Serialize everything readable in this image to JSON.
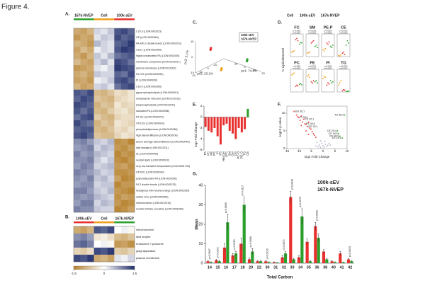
{
  "figure_title": "Figure 4.",
  "color_scale": {
    "colors": [
      "#b5802a",
      "#ffffff",
      "#1f2d6b"
    ],
    "lim": [
      -1.5,
      1.5
    ],
    "ticks": [
      -1.5,
      0,
      1.5
    ]
  },
  "panel_a": {
    "label": "A.",
    "groups": [
      {
        "name": "167k-NVEP",
        "color": "#2ca02c"
      },
      {
        "name": "Cell",
        "color": "#f0a020"
      },
      {
        "name": "100k-sEV",
        "color": "#e8312f"
      }
    ],
    "rows": [
      "C20:3 (LION:0002025)",
      "GP (LION:0000064)",
      "FA with 2 double bonds (LION:0002023)",
      "C18:1 (LION:0002050)",
      "highly unsaturated FA (LION:0002035)",
      "membrane component (LION:0012017)",
      "plasma membrane (LION:0012002)",
      "FA C20 (LION:0002059)",
      "PI (LION:0000030)",
      "C16:0 (LION:0002060)",
      "glycerophospholipids (LION:0000001)",
      "endoplasmic reticulum (LION:0012016)",
      "lysophospholipids (LION:0012041)",
      "saturated FA (LION:0002966)",
      "FA 18:1 (LION:0002070)",
      "STO102 (LION:0000003)",
      "phosphatidylserines (LION:0012086)",
      "high lateral diffusion (LION:0002000)",
      "above average lateral diffusion (LION:0000046)",
      "lipid storage (LION:0012011)",
      "SL (LION:0000008)",
      "neutral lipids (LION:0000012)",
      "very low transition temperature (LION:0001735)",
      "GP1101 (LION:0000030)",
      "polyunsaturated FA (LION:0002006)",
      "FA 2 double bonds (LION:0002075)",
      "headgroup with neutral charge (LION:0002959)",
      "zwitter ionic (LION:0000050)",
      "mitochondrion (LION:0012010)",
      "neutral intrinsic curvature (LION:0001660)"
    ],
    "values": [
      [
        -1.0,
        -1.1,
        -0.9,
        0.3,
        0.2,
        0.4,
        1.2,
        1.3,
        1.1
      ],
      [
        -1.2,
        -1.0,
        -1.1,
        0.2,
        0.4,
        0.3,
        1.3,
        1.1,
        1.2
      ],
      [
        -0.9,
        -1.0,
        -1.2,
        0.5,
        0.3,
        0.2,
        1.1,
        1.2,
        1.4
      ],
      [
        -1.1,
        -0.8,
        -1.0,
        0.1,
        0.3,
        0.2,
        1.2,
        1.4,
        1.3
      ],
      [
        -1.0,
        -1.2,
        -0.9,
        0.4,
        0.2,
        0.5,
        1.0,
        1.1,
        1.2
      ],
      [
        -0.8,
        -1.0,
        -1.1,
        0.3,
        0.5,
        0.2,
        1.3,
        1.2,
        1.0
      ],
      [
        -1.2,
        -1.1,
        -1.0,
        0.2,
        0.1,
        0.3,
        1.4,
        1.3,
        1.2
      ],
      [
        -1.0,
        -0.9,
        -1.1,
        0.4,
        0.3,
        0.3,
        1.1,
        1.0,
        1.3
      ],
      [
        -1.1,
        -1.0,
        -1.2,
        0.1,
        0.2,
        0.4,
        1.2,
        1.3,
        1.1
      ],
      [
        -0.9,
        -1.1,
        -1.0,
        0.3,
        0.4,
        0.2,
        1.0,
        1.2,
        1.3
      ],
      [
        1.2,
        1.1,
        1.3,
        -0.8,
        -0.9,
        -0.7,
        -0.4,
        -0.5,
        -0.3
      ],
      [
        1.1,
        1.3,
        1.2,
        -0.7,
        -0.8,
        -0.9,
        -0.5,
        -0.4,
        -0.3
      ],
      [
        1.3,
        1.2,
        1.1,
        -0.9,
        -0.7,
        -0.8,
        -0.3,
        -0.5,
        -0.4
      ],
      [
        1.2,
        1.0,
        1.2,
        -0.8,
        -0.9,
        -0.6,
        -0.4,
        -0.3,
        -0.5
      ],
      [
        1.0,
        1.2,
        1.3,
        -0.6,
        -0.8,
        -0.9,
        -0.5,
        -0.4,
        -0.4
      ],
      [
        1.3,
        1.1,
        1.0,
        -0.9,
        -0.7,
        -0.8,
        -0.3,
        -0.4,
        -0.5
      ],
      [
        1.1,
        1.2,
        1.2,
        -0.8,
        -0.9,
        -0.7,
        -0.4,
        -0.5,
        -0.3
      ],
      [
        1.2,
        1.3,
        1.1,
        -0.7,
        -0.8,
        -0.8,
        -0.5,
        -0.3,
        -0.4
      ],
      [
        0.8,
        0.9,
        0.7,
        0.4,
        0.3,
        0.5,
        -1.3,
        -1.2,
        -1.4
      ],
      [
        0.7,
        0.8,
        0.9,
        0.3,
        0.5,
        0.4,
        -1.2,
        -1.3,
        -1.1
      ],
      [
        0.9,
        0.7,
        0.8,
        0.5,
        0.4,
        0.3,
        -1.4,
        -1.2,
        -1.3
      ],
      [
        0.8,
        0.8,
        0.9,
        0.4,
        0.2,
        0.4,
        -1.3,
        -1.4,
        -1.2
      ],
      [
        0.7,
        0.9,
        0.8,
        0.3,
        0.4,
        0.5,
        -1.2,
        -1.1,
        -1.3
      ],
      [
        0.9,
        0.8,
        0.7,
        0.5,
        0.3,
        0.4,
        -1.3,
        -1.3,
        -1.2
      ],
      [
        0.8,
        0.7,
        0.9,
        0.4,
        0.5,
        0.3,
        -1.1,
        -1.4,
        -1.3
      ],
      [
        0.7,
        0.8,
        0.8,
        0.3,
        0.4,
        0.4,
        -1.4,
        -1.2,
        -1.2
      ],
      [
        0.9,
        0.9,
        0.7,
        0.4,
        0.3,
        0.5,
        -1.2,
        -1.3,
        -1.4
      ],
      [
        0.8,
        0.7,
        0.8,
        0.5,
        0.4,
        0.3,
        -1.3,
        -1.1,
        -1.2
      ],
      [
        0.7,
        0.9,
        0.9,
        0.3,
        0.5,
        0.4,
        -1.2,
        -1.4,
        -1.3
      ],
      [
        0.9,
        0.8,
        0.8,
        0.4,
        0.3,
        0.3,
        -1.4,
        -1.3,
        -1.1
      ]
    ]
  },
  "panel_b": {
    "label": "B.",
    "groups": [
      {
        "name": "100k-sEV",
        "color": "#e8312f"
      },
      {
        "name": "Cell",
        "color": "#f0a020"
      },
      {
        "name": "167k-NVEP",
        "color": "#2ca02c"
      }
    ],
    "rows": [
      "mitochondrion",
      "lipid droplet",
      "endosome / lysosome",
      "golgi apparatus",
      "plasma membrane"
    ],
    "values": [
      [
        -1.0,
        -1.1,
        -0.9,
        1.2,
        1.1,
        1.3,
        0.0,
        0.1,
        -0.1
      ],
      [
        0.8,
        0.9,
        0.7,
        -0.3,
        -0.2,
        -0.4,
        -0.8,
        -0.9,
        -0.7
      ],
      [
        1.0,
        1.1,
        0.9,
        0.0,
        0.1,
        -0.1,
        -1.2,
        -1.1,
        -1.3
      ],
      [
        -0.5,
        -0.6,
        -0.4,
        1.3,
        1.2,
        1.4,
        -0.6,
        -0.7,
        -0.5
      ],
      [
        1.3,
        1.2,
        1.4,
        -1.0,
        -0.9,
        -1.1,
        0.2,
        0.1,
        0.3
      ]
    ]
  },
  "panel_c": {
    "label": "C.",
    "axis_labels": [
      "pc1: 74.4%",
      "pc2: 23.1%",
      "pc3: 2.1%"
    ],
    "lims": [
      [
        -20,
        20
      ],
      [
        -20,
        20
      ],
      [
        -10,
        10
      ]
    ],
    "ticks": [
      [
        -10,
        0,
        10,
        20
      ],
      [
        -10,
        0,
        10,
        20
      ],
      [
        -10,
        0,
        10
      ]
    ],
    "series": [
      {
        "name": "100k-sEV",
        "color": "#e8312f",
        "points": [
          [
            -15,
            5,
            3
          ],
          [
            -14,
            6,
            4
          ],
          [
            -16,
            4,
            2
          ]
        ]
      },
      {
        "name": "167k-NVEP",
        "color": "#2ca02c",
        "points": [
          [
            13,
            -10,
            -2
          ],
          [
            12,
            -11,
            -3
          ],
          [
            14,
            -9,
            -1
          ]
        ]
      },
      {
        "color": "#f0a020",
        "points": [
          [
            2,
            12,
            -5
          ],
          [
            3,
            13,
            -4
          ],
          [
            1,
            11,
            -6
          ]
        ]
      }
    ]
  },
  "panel_d": {
    "label": "D.",
    "y_label": "% Lipid detected",
    "groups": [
      {
        "name": "Cell",
        "color": "#f0a020"
      },
      {
        "name": "100k-sEV",
        "color": "#e8312f"
      },
      {
        "name": "167k-NVEP",
        "color": "#2ca02c"
      }
    ],
    "plots": [
      {
        "title": "FC",
        "ylim": [
          0,
          40
        ],
        "values": [
          [
            8,
            9,
            10
          ],
          [
            30,
            32,
            28
          ],
          [
            22,
            25,
            24
          ]
        ],
        "p_labels": [
          "p<0.0001",
          "p=0.0007"
        ]
      },
      {
        "title": "SM",
        "ylim": [
          0,
          20
        ],
        "values": [
          [
            3,
            3.5,
            4
          ],
          [
            12,
            13,
            14
          ],
          [
            9,
            10,
            8
          ]
        ],
        "p_labels": [
          "p=0.0001",
          "p=0.0001"
        ]
      },
      {
        "title": "PE-P",
        "ylim": [
          0,
          20
        ],
        "values": [
          [
            6,
            5,
            7
          ],
          [
            12,
            11,
            13
          ],
          [
            9,
            8,
            10
          ]
        ],
        "p_labels": [
          "p=0.0004",
          "p=0.0055"
        ]
      },
      {
        "title": "CE",
        "ylim": [
          0,
          20
        ],
        "values": [
          [
            1,
            0.5,
            1.5
          ],
          [
            3,
            4,
            2
          ],
          [
            10,
            14,
            12
          ]
        ],
        "p_labels": [
          "p=0.0010",
          "p=0.0003"
        ]
      },
      {
        "title": "PC",
        "ylim": [
          0,
          60
        ],
        "values": [
          [
            45,
            48,
            50
          ],
          [
            15,
            18,
            16
          ],
          [
            20,
            22,
            19
          ]
        ],
        "p_labels": [
          "p<0.0001",
          "p<0.0001"
        ]
      },
      {
        "title": "PE",
        "ylim": [
          0,
          20
        ],
        "values": [
          [
            14,
            15,
            13
          ],
          [
            9,
            8,
            10
          ],
          [
            9,
            10,
            8
          ]
        ],
        "p_labels": [
          "p=0.0041",
          "p=0.0001"
        ]
      },
      {
        "title": "PI",
        "ylim": [
          0,
          10
        ],
        "values": [
          [
            6,
            7,
            6.5
          ],
          [
            3,
            4,
            3.5
          ],
          [
            5,
            4,
            4.5
          ]
        ],
        "p_labels": [
          "p=0.0065",
          "p=0.0003"
        ]
      },
      {
        "title": "TG",
        "ylim": [
          0,
          10
        ],
        "values": [
          [
            3,
            4,
            5
          ],
          [
            0.5,
            1,
            0.8
          ],
          [
            0.2,
            0.3,
            0.4
          ]
        ],
        "p_labels": [
          "p=0.0005",
          "p=0.0002"
        ]
      }
    ]
  },
  "panel_e": {
    "label": "E.",
    "chart_data": {
      "type": "bar",
      "y_label": "log2 Fold Change",
      "categories": [
        "PA",
        "PC",
        "PE",
        "PG",
        "PI",
        "PS",
        "HexCer",
        "LPC",
        "SM",
        "Cer",
        "DG",
        "PC-O",
        "PE-O",
        "TG",
        "CE"
      ],
      "values": [
        -1.8,
        -2.5,
        -2.8,
        -2.0,
        -3.5,
        -5.0,
        -1.5,
        -1.2,
        -2.5,
        -3.0,
        -4.0,
        -2.0,
        -2.8,
        -2.2,
        1.5
      ],
      "colors": {
        "negative": "#e8312f",
        "positive": "#2ca02c"
      },
      "ylim": [
        -6,
        2
      ],
      "yticks": [
        -6,
        -4,
        -2,
        0,
        2
      ]
    }
  },
  "panel_f": {
    "label": "F.",
    "chart_data": {
      "type": "scatter",
      "x_label": "log2 Fold Change",
      "y_label": "-log10 p-value",
      "series": [
        {
          "color": "#e8312f",
          "x": [
            -12,
            -11,
            -10.5,
            -10,
            -9.5,
            -9,
            -8.5,
            -8,
            -7.5,
            -7,
            -6.5,
            -6,
            -5.5,
            -5,
            -4.5,
            -4,
            -3.5,
            -3,
            -9,
            -7,
            -6
          ],
          "y": [
            10.5,
            9.5,
            9,
            8.8,
            8,
            9.2,
            7.5,
            8.3,
            7,
            6.8,
            6.2,
            7.5,
            5.8,
            5.5,
            4.8,
            4.2,
            3.8,
            3.2,
            6.5,
            5,
            4
          ]
        },
        {
          "color": "#2ca02c",
          "x": [
            6,
            6.5,
            7,
            8,
            9
          ],
          "y": [
            5,
            4.2,
            3.5,
            3,
            9.5
          ]
        },
        {
          "color": "#b0b0c8",
          "x": [
            -2,
            -1.5,
            -1,
            -0.5,
            0,
            0.5,
            1,
            1.5,
            2,
            -2.5,
            2.5,
            -1,
            0.8,
            3,
            -3
          ],
          "y": [
            0.5,
            1,
            0.3,
            1.5,
            0.8,
            0.4,
            1.2,
            0.6,
            0.9,
            1.8,
            1.5,
            2.2,
            2,
            1,
            0.7
          ]
        }
      ],
      "annotations": [
        {
          "text": "DG 36:1",
          "x": -12,
          "y": 10.5
        },
        {
          "text": "PI 34:1",
          "x": -10,
          "y": 8.8
        },
        {
          "text": "PE 32:1",
          "x": -8,
          "y": 8.3
        },
        {
          "text": "PS 40:5",
          "x": -7.5,
          "y": 7
        },
        {
          "text": "PG 34:1",
          "x": -6.5,
          "y": 6.2
        },
        {
          "text": "CE 20:4",
          "x": 6,
          "y": 5
        },
        {
          "text": "CE 18:0",
          "x": 6.5,
          "y": 4.2
        },
        {
          "text": "CE 16:0",
          "x": 7,
          "y": 3.5
        },
        {
          "text": "CE 18:1",
          "x": 8,
          "y": 3
        },
        {
          "text": "TG 48:4",
          "x": 9,
          "y": 9.5
        }
      ],
      "xlim": [
        -15,
        10
      ],
      "xticks": [
        -15,
        -10,
        -5,
        0,
        5,
        10
      ],
      "ylim": [
        0,
        12
      ],
      "yticks": [
        0,
        5,
        10
      ]
    }
  },
  "panel_g": {
    "label": "G.",
    "chart_data": {
      "type": "bar",
      "x_label": "Total Carbon",
      "y_label": "Mean",
      "categories": [
        "14",
        "15",
        "16",
        "17",
        "18",
        "20",
        "22",
        "30",
        "31",
        "32",
        "33",
        "34",
        "35",
        "36",
        "38",
        "40",
        "41",
        "42"
      ],
      "series": [
        {
          "name": "100k-sEV",
          "color": "#e8312f",
          "values": [
            1,
            1.5,
            8,
            4,
            10,
            2,
            1,
            1,
            0.5,
            3,
            34,
            3,
            11,
            19,
            6,
            1,
            5,
            2
          ],
          "errors": [
            0.3,
            0.5,
            2,
            1,
            3,
            0.8,
            0.3,
            0.3,
            0.2,
            1,
            3,
            1,
            1.5,
            2,
            1,
            0.3,
            1,
            0.5
          ]
        },
        {
          "name": "167k-NVEP",
          "color": "#2ca02c",
          "values": [
            0.5,
            1,
            21,
            5,
            30,
            6,
            1,
            0.5,
            0.3,
            5,
            2,
            24,
            1,
            13,
            2,
            0.5,
            0.5,
            1
          ],
          "errors": [
            0.2,
            0.3,
            4,
            1,
            4,
            1.5,
            0.3,
            0.2,
            0.1,
            1,
            0.5,
            4,
            0.3,
            2,
            0.5,
            0.2,
            0.1,
            0.3
          ]
        }
      ],
      "p_labels": [
        "p=0.0007",
        "p=0.0242",
        "p=0.0000",
        "p=0.0215",
        "p=0.0127",
        "p=0.0008",
        null,
        "p=0.0226",
        null,
        "p=0.0074",
        "p=0.0048",
        "p=0.0079",
        null,
        "p=0.0016",
        null,
        null,
        null,
        "p=0.0033"
      ],
      "ylim": [
        0,
        40
      ],
      "yticks": [
        0,
        10,
        20,
        30,
        40
      ]
    }
  }
}
